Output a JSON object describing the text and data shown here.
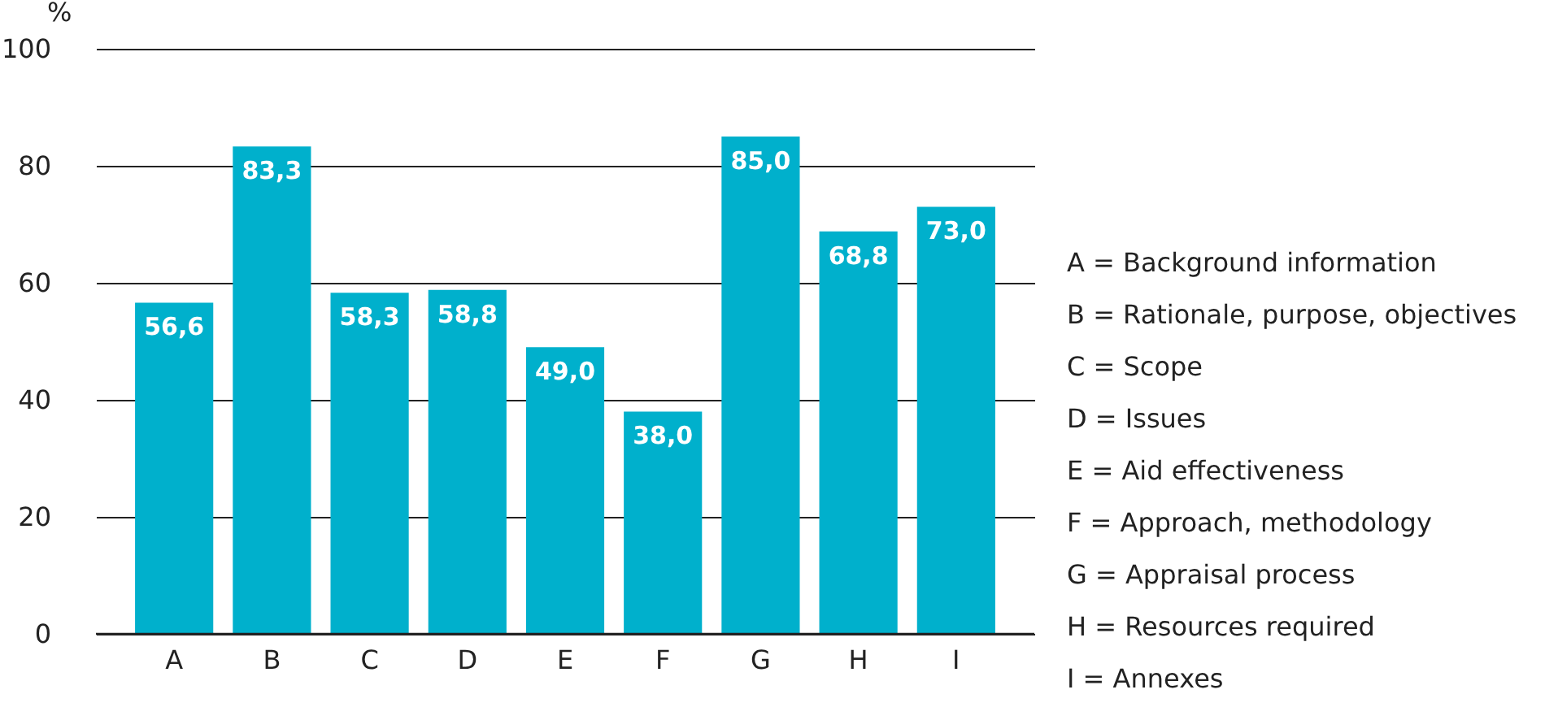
{
  "chart_data": {
    "type": "bar",
    "ylabel": "%",
    "categories": [
      "A",
      "B",
      "C",
      "D",
      "E",
      "F",
      "G",
      "H",
      "I"
    ],
    "values": [
      56.6,
      83.3,
      58.3,
      58.8,
      49.0,
      38.0,
      85.0,
      68.8,
      73.0
    ],
    "value_labels": [
      "56,6",
      "83,3",
      "58,3",
      "58,8",
      "49,0",
      "38,0",
      "85,0",
      "68,8",
      "73,0"
    ],
    "color": "#00b0cc",
    "ylim": [
      0,
      100
    ],
    "yticks": [
      0,
      20,
      40,
      60,
      80,
      100
    ],
    "grid": "y",
    "annotations": [
      "A = Background information",
      "B = Rationale, purpose, objectives",
      "C = Scope",
      "D = Issues",
      "E = Aid effectiveness",
      "F = Approach, methodology",
      "G = Appraisal process",
      "H = Resources required",
      "I = Annexes"
    ]
  }
}
